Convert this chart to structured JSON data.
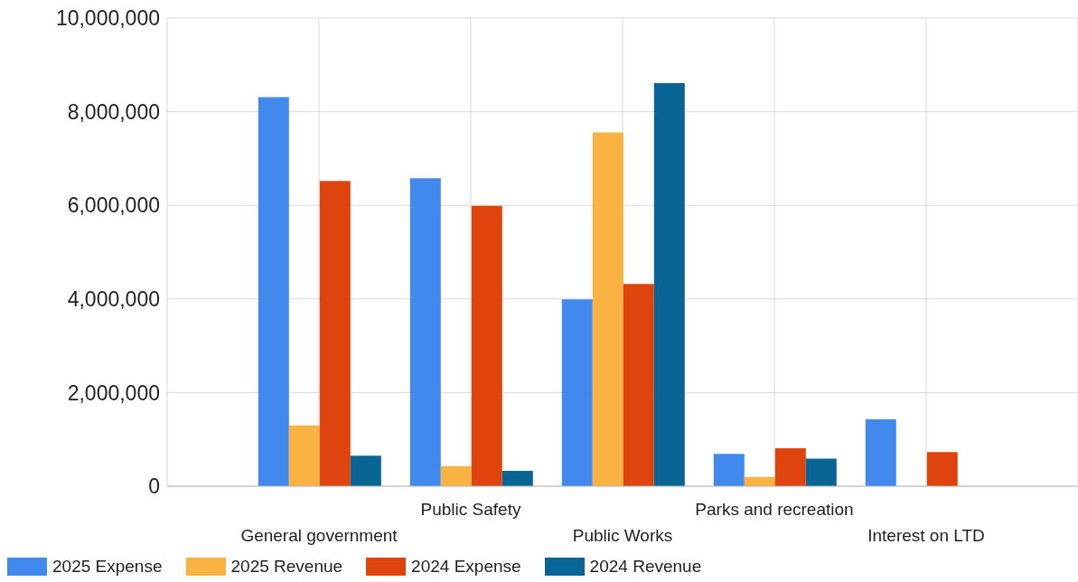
{
  "chart_data": {
    "type": "bar",
    "categories": [
      "General government",
      "Public Safety",
      "Public Works",
      "Parks and recreation",
      "Interest on LTD"
    ],
    "series": [
      {
        "name": "2025 Expense",
        "color": "#4289ee",
        "values": [
          8310000,
          6580000,
          3990000,
          690000,
          1430000
        ]
      },
      {
        "name": "2025 Revenue",
        "color": "#fab342",
        "values": [
          1300000,
          430000,
          7560000,
          200000,
          null
        ]
      },
      {
        "name": "2024 Expense",
        "color": "#e0440e",
        "values": [
          6520000,
          5990000,
          4320000,
          810000,
          730000
        ]
      },
      {
        "name": "2024 Revenue",
        "color": "#086595",
        "values": [
          650000,
          330000,
          8610000,
          590000,
          null
        ]
      }
    ],
    "ylim": [
      0,
      10000000
    ],
    "yticks": [
      0,
      {
        "value": 2000000,
        "label": "2,000,000"
      },
      {
        "value": 4000000,
        "label": "4,000,000"
      },
      {
        "value": 6000000,
        "label": "6,000,000"
      },
      {
        "value": 8000000,
        "label": "8,000,000"
      },
      {
        "value": 10000000,
        "label": "10,000,000"
      }
    ],
    "grid": true,
    "legend": "bottom left"
  }
}
